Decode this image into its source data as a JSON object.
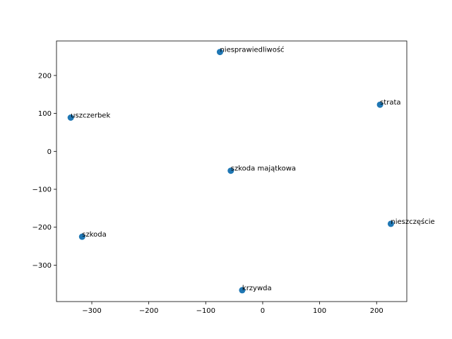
{
  "chart_data": {
    "type": "scatter",
    "title": "",
    "xlabel": "",
    "ylabel": "",
    "xlim": [
      -362,
      253
    ],
    "ylim": [
      -396,
      291
    ],
    "x_ticks": [
      -300,
      -200,
      -100,
      0,
      100,
      200
    ],
    "y_ticks": [
      -300,
      -200,
      -100,
      0,
      100,
      200
    ],
    "x_tick_labels": [
      "−300",
      "−200",
      "−100",
      "0",
      "100",
      "200"
    ],
    "y_tick_labels": [
      "−300",
      "−200",
      "−100",
      "0",
      "100",
      "200"
    ],
    "grid": false,
    "marker_color": "#1f77b4",
    "points": [
      {
        "label": "niesprawiedliwość",
        "x": -75,
        "y": 262
      },
      {
        "label": "strata",
        "x": 206,
        "y": 123
      },
      {
        "label": "uszczerbek",
        "x": -337,
        "y": 89
      },
      {
        "label": "szkoda majątkowa",
        "x": -56,
        "y": -51
      },
      {
        "label": "nieszczęście",
        "x": 225,
        "y": -191
      },
      {
        "label": "szkoda",
        "x": -317,
        "y": -225
      },
      {
        "label": "krzywda",
        "x": -36,
        "y": -366
      }
    ]
  }
}
